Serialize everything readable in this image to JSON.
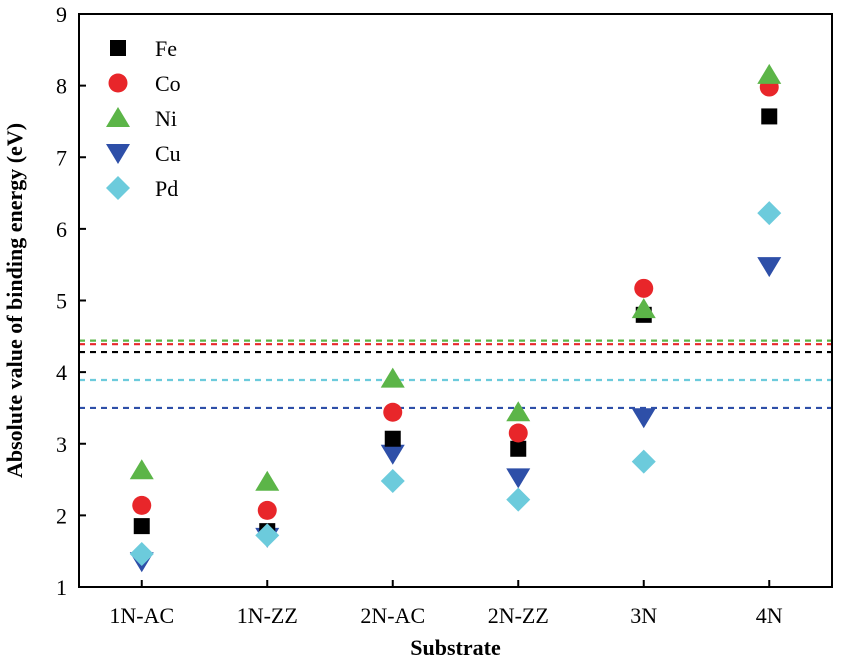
{
  "chart_data": {
    "type": "scatter",
    "xlabel": "Substrate",
    "ylabel": "Absolute value of binding energy (eV)",
    "categories": [
      "1N-AC",
      "1N-ZZ",
      "2N-AC",
      "2N-ZZ",
      "3N",
      "4N"
    ],
    "ylim": [
      1,
      9
    ],
    "yticks": [
      "1",
      "2",
      "3",
      "4",
      "5",
      "6",
      "7",
      "8",
      "9"
    ],
    "grid": false,
    "legend_position": "top-left",
    "series": [
      {
        "name": "Fe",
        "marker": "square",
        "color": "#000000",
        "values": [
          1.85,
          1.78,
          3.07,
          2.93,
          4.8,
          7.57
        ]
      },
      {
        "name": "Co",
        "marker": "circle",
        "color": "#e8262a",
        "values": [
          2.14,
          2.07,
          3.44,
          3.15,
          5.17,
          7.98
        ]
      },
      {
        "name": "Ni",
        "marker": "triangle-up",
        "color": "#5cb548",
        "values": [
          2.63,
          2.47,
          3.91,
          3.44,
          4.88,
          8.15
        ]
      },
      {
        "name": "Cu",
        "marker": "triangle-down",
        "color": "#2e4fa8",
        "values": [
          1.36,
          1.7,
          2.86,
          2.53,
          3.37,
          5.48
        ]
      },
      {
        "name": "Pd",
        "marker": "diamond",
        "color": "#6ccbdc",
        "values": [
          1.46,
          1.72,
          2.48,
          2.22,
          2.75,
          6.22
        ]
      }
    ],
    "reference_lines": [
      {
        "value": 4.44,
        "color": "#5cb548"
      },
      {
        "value": 4.39,
        "color": "#e8262a"
      },
      {
        "value": 4.28,
        "color": "#000000"
      },
      {
        "value": 3.89,
        "color": "#6ccbdc"
      },
      {
        "value": 3.5,
        "color": "#2e4fa8"
      }
    ]
  }
}
